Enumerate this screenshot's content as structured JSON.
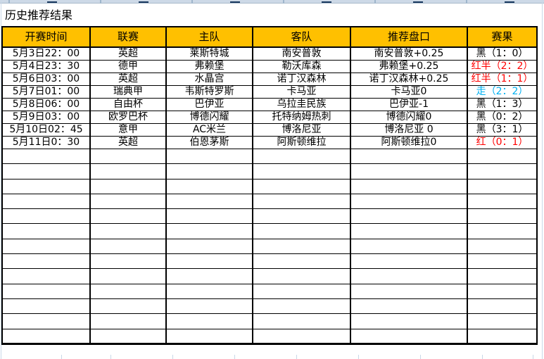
{
  "title": "历史推荐结果",
  "colors": {
    "header_bg": "#FFC000",
    "black": "#000000",
    "red": "#FF0000",
    "cyan": "#00B0F0"
  },
  "table": {
    "headers": [
      "开赛时间",
      "联赛",
      "主队",
      "客队",
      "推荐盘口",
      "赛果"
    ],
    "rows": [
      {
        "time": "5月3日22：00",
        "league": "英超",
        "home": "莱斯特城",
        "away": "南安普敦",
        "handicap": "南安普敦+0.25",
        "result": "黑（1：0）",
        "result_color": "black"
      },
      {
        "time": "5月4日23：30",
        "league": "德甲",
        "home": "弗赖堡",
        "away": "勒沃库森",
        "handicap": "弗赖堡+0.25",
        "result": "红半（2：2）",
        "result_color": "red"
      },
      {
        "time": "5月6日03：00",
        "league": "英超",
        "home": "水晶宫",
        "away": "诺丁汉森林",
        "handicap": "诺丁汉森林+0.25",
        "result": "红半（1：1）",
        "result_color": "red"
      },
      {
        "time": "5月7日01：00",
        "league": "瑞典甲",
        "home": "韦斯特罗斯",
        "away": "卡马亚",
        "handicap": "卡马亚0",
        "result": "走（2：2）",
        "result_color": "cyan"
      },
      {
        "time": "5月8日06：00",
        "league": "自由杯",
        "home": "巴伊亚",
        "away": "乌拉圭民族",
        "handicap": "巴伊亚-1",
        "result": "黑（1：3）",
        "result_color": "black"
      },
      {
        "time": "5月9日03：00",
        "league": "欧罗巴杯",
        "home": "博德闪耀",
        "away": "托特纳姆热刺",
        "handicap": "博德闪耀0",
        "result": "黑（0：2）",
        "result_color": "black"
      },
      {
        "time": "5月10日02：45",
        "league": "意甲",
        "home": "AC米兰",
        "away": "博洛尼亚",
        "handicap": "博洛尼亚 0",
        "result": "黑（3：1）",
        "result_color": "black"
      },
      {
        "time": "5月11日0：30",
        "league": "英超",
        "home": "伯恩茅斯",
        "away": "阿斯顿维拉",
        "handicap": "阿斯顿维拉0",
        "result": "红（0：1）",
        "result_color": "red"
      }
    ],
    "empty_row_count": 13
  }
}
